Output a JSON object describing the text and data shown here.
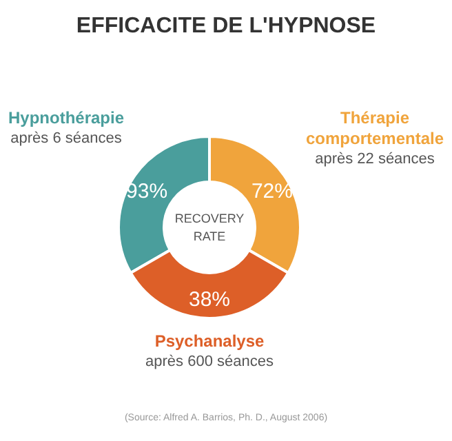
{
  "chart_data": {
    "type": "other",
    "title": "EFFICACITE DE L'HYPNOSE",
    "categories": [
      "Hypnothérapie",
      "Thérapie comportementale",
      "Psychanalyse"
    ],
    "values": [
      93,
      72,
      38
    ],
    "value_labels": [
      "93%",
      "72%",
      "38%"
    ],
    "colors": [
      "#4a9e9c",
      "#f0a43c",
      "#dd5f28"
    ],
    "annotations": [
      "après 6 séances",
      "après 22 séances",
      "après 600 séances",
      "RECOVERY RATE",
      "(Source: Alfred A. Barrios, Ph. D., August 2006)"
    ]
  }
}
